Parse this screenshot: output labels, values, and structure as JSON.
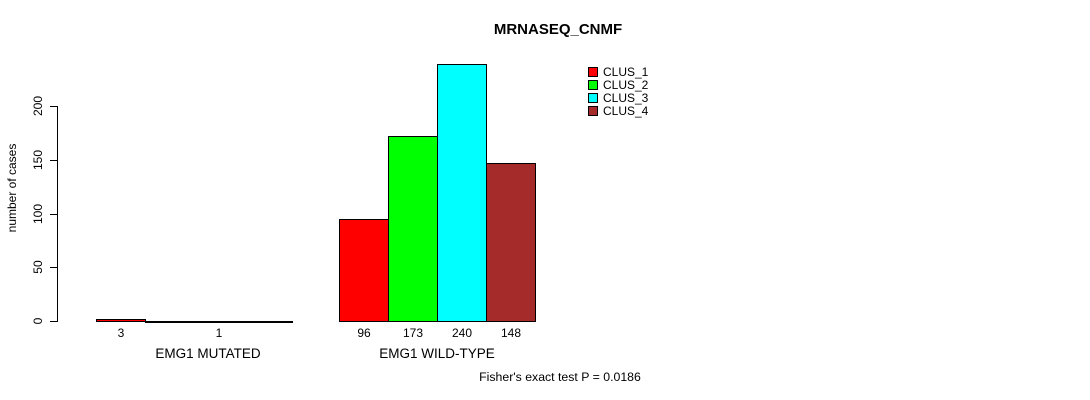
{
  "chart_data": {
    "type": "bar",
    "title": "MRNASEQ_CNMF",
    "ylabel": "number of cases",
    "xlabel": "",
    "categories": [
      "EMG1 MUTATED",
      "EMG1 WILD-TYPE"
    ],
    "series": [
      {
        "name": "CLUS_1",
        "color": "#FF0000",
        "values": [
          3,
          96
        ]
      },
      {
        "name": "CLUS_2",
        "color": "#00FF00",
        "values": [
          0,
          173
        ]
      },
      {
        "name": "CLUS_3",
        "color": "#00FFFF",
        "values": [
          1,
          240
        ]
      },
      {
        "name": "CLUS_4",
        "color": "#A52A2A",
        "values": [
          0,
          148
        ]
      }
    ],
    "bar_labels": [
      [
        "3",
        "",
        "1",
        ""
      ],
      [
        "96",
        "173",
        "240",
        "148"
      ]
    ],
    "yticks": [
      0,
      50,
      100,
      150,
      200
    ],
    "ylim": [
      0,
      243
    ],
    "grid": false,
    "legend_position": "top-right",
    "legend_labels": [
      "CLUS_1",
      "CLUS_2",
      "CLUS_3",
      "CLUS_4"
    ],
    "annotation": "Fisher's exact test P = 0.0186",
    "axis_color": "#000000",
    "bar_border_color": "#000000"
  }
}
